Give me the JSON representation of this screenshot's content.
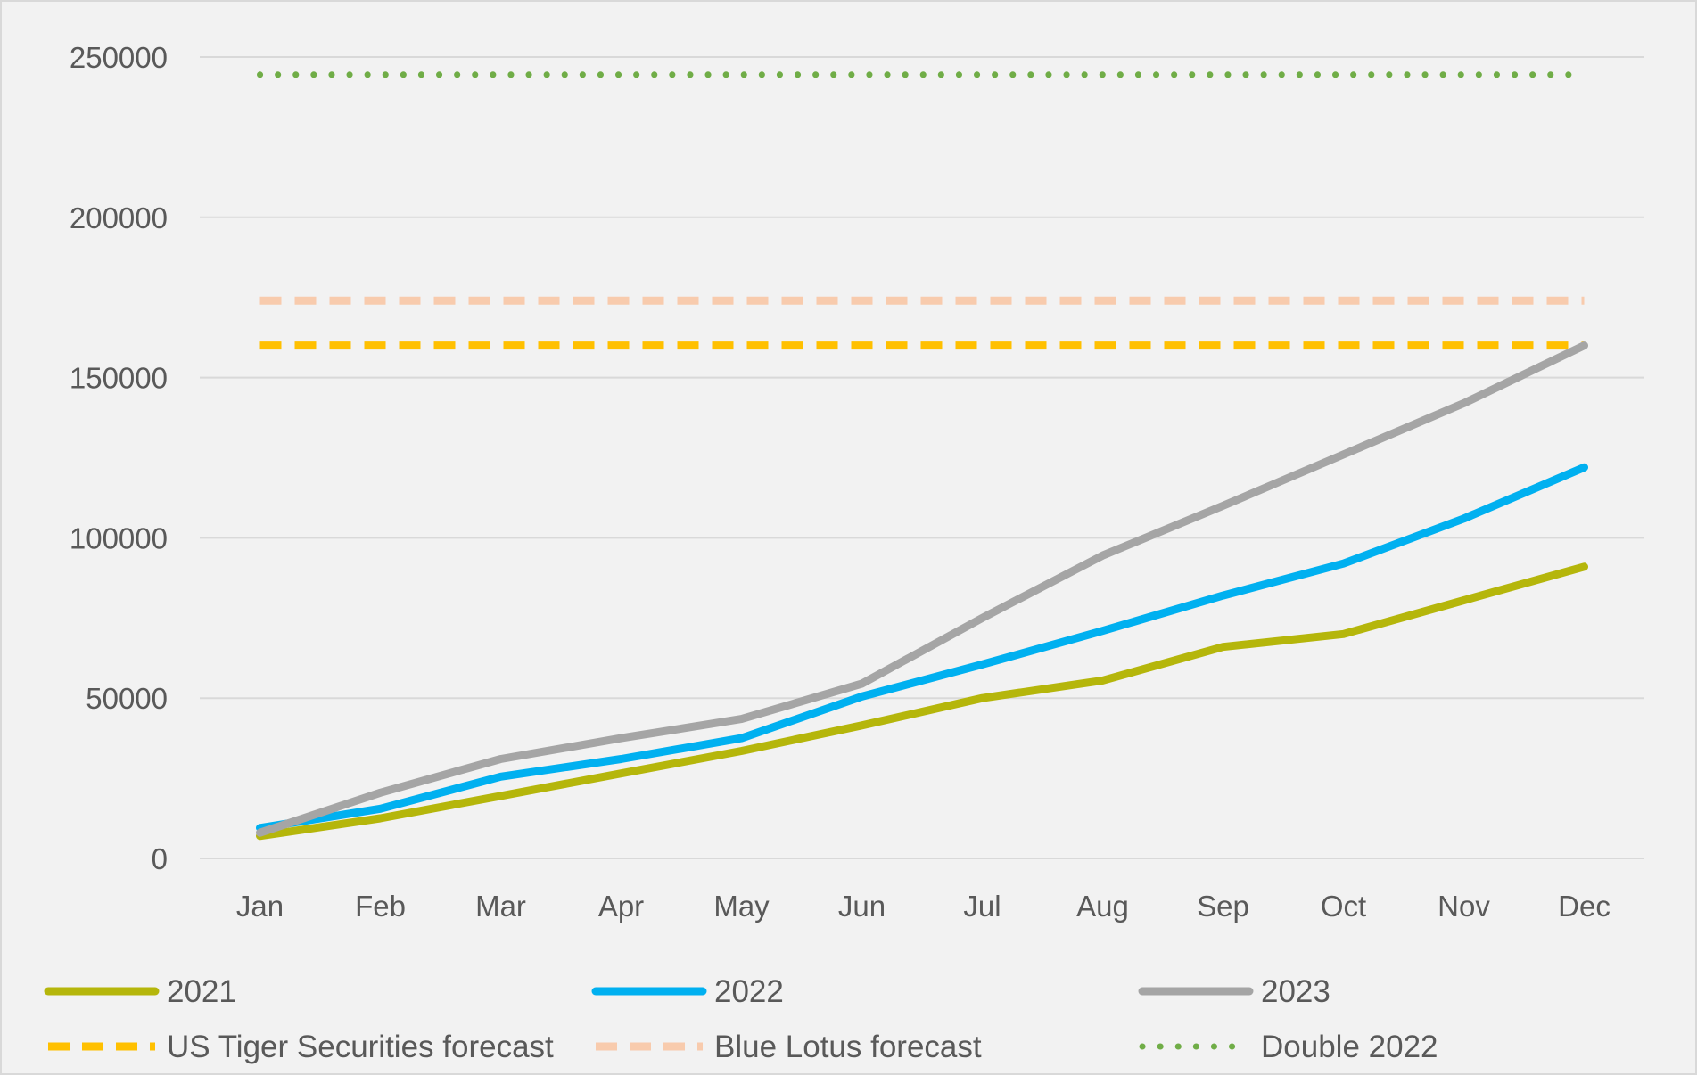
{
  "chart_data": {
    "type": "line",
    "categories": [
      "Jan",
      "Feb",
      "Mar",
      "Apr",
      "May",
      "Jun",
      "Jul",
      "Aug",
      "Sep",
      "Oct",
      "Nov",
      "Dec"
    ],
    "ylim": [
      0,
      250000
    ],
    "yticks": [
      0,
      50000,
      100000,
      150000,
      200000,
      250000
    ],
    "grid": true,
    "legend_position": "bottom",
    "series": [
      {
        "name": "2021",
        "color": "#b5b60b",
        "style": "solid",
        "values": [
          7000,
          12500,
          19500,
          26500,
          33500,
          41500,
          50000,
          55500,
          66000,
          70000,
          80500,
          91000
        ]
      },
      {
        "name": "2022",
        "color": "#00b0f0",
        "style": "solid",
        "values": [
          9500,
          15500,
          25500,
          31000,
          37500,
          50500,
          60500,
          71000,
          82000,
          92000,
          106000,
          122000
        ]
      },
      {
        "name": "2023",
        "color": "#a5a5a5",
        "style": "solid",
        "values": [
          8000,
          20500,
          31000,
          37500,
          43500,
          54500,
          75000,
          94500,
          110000,
          126000,
          142000,
          160000
        ]
      },
      {
        "name": "US Tiger Securities forecast",
        "color": "#ffc000",
        "style": "dashed",
        "values": [
          160000,
          160000,
          160000,
          160000,
          160000,
          160000,
          160000,
          160000,
          160000,
          160000,
          160000,
          160000
        ]
      },
      {
        "name": "Blue Lotus forecast",
        "color": "#f8cbad",
        "style": "dashed",
        "values": [
          174000,
          174000,
          174000,
          174000,
          174000,
          174000,
          174000,
          174000,
          174000,
          174000,
          174000,
          174000
        ]
      },
      {
        "name": "Double 2022",
        "color": "#70ad47",
        "style": "dotted",
        "values": [
          244500,
          244500,
          244500,
          244500,
          244500,
          244500,
          244500,
          244500,
          244500,
          244500,
          244500,
          244500
        ]
      }
    ]
  }
}
